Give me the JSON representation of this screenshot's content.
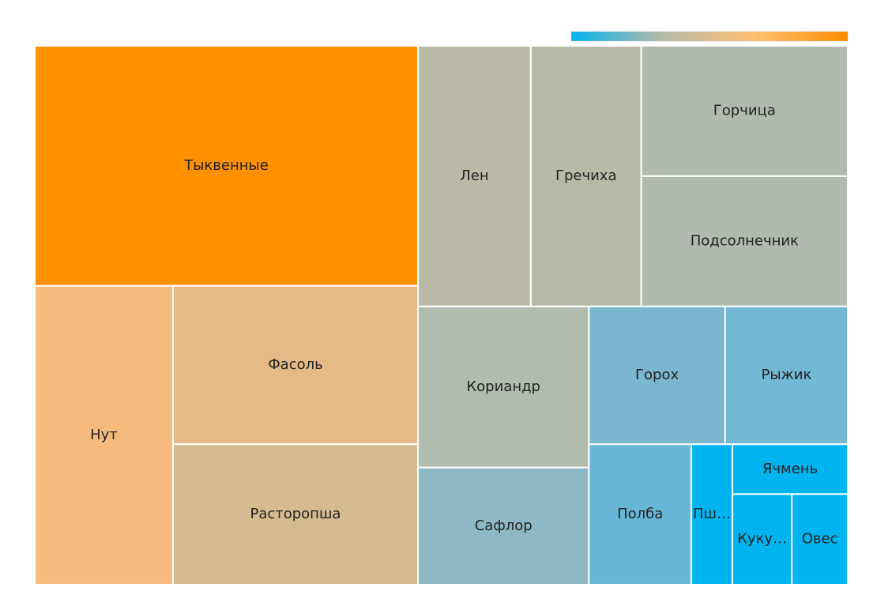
{
  "chart_data": {
    "type": "treemap",
    "categories": [
      "Тыквенные",
      "Нут",
      "Фасоль",
      "Расторопша",
      "Лен",
      "Гречиха",
      "Горчица",
      "Подсолнечник",
      "Кориандр",
      "Сафлор",
      "Горох",
      "Рыжик",
      "Полба",
      "Пш…",
      "Ячмень",
      "Куку…",
      "Овес"
    ],
    "values": [
      147,
      66,
      62,
      55,
      47,
      46,
      43,
      43,
      44,
      32,
      30,
      27,
      23,
      9.2,
      9.2,
      8.6,
      8.1
    ],
    "colors": [
      "#ff9000",
      "#f4bb7c",
      "#e6ba86",
      "#d6bb90",
      "#bbbaa6",
      "#b8baa8",
      "#b0baae",
      "#b0baae",
      "#b0bcae",
      "#8fb8c6",
      "#7ab7ce",
      "#72b8d4",
      "#68b6d8",
      "#00b4f0",
      "#00b4f0",
      "#00b4f0",
      "#00b4f0"
    ],
    "colorscale": [
      "#00b4f0",
      "#b8bba8",
      "#ffbf70",
      "#ff8c00"
    ]
  }
}
